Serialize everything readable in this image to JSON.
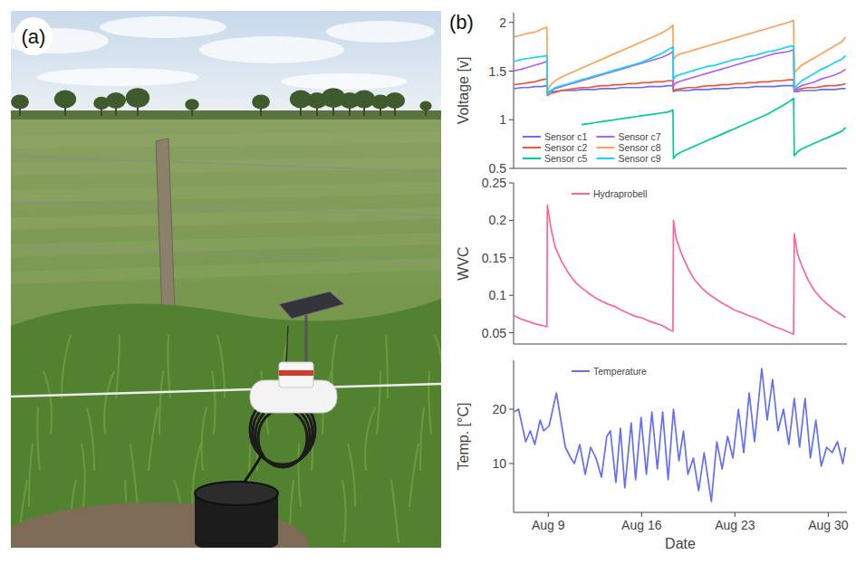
{
  "panel_labels": [
    "(a)",
    "(b)"
  ],
  "chart_data": [
    {
      "type": "line",
      "ylabel": "Voltage [v]",
      "xlim": [
        6.4,
        31.4
      ],
      "ylim": [
        0.5,
        2.1
      ],
      "yticks": [
        0.5,
        1,
        1.5,
        2
      ],
      "grid": false,
      "legend": "lower left",
      "tick_labels": "y",
      "x": [
        6.43,
        7.0,
        7.5,
        8.0,
        8.5,
        8.9,
        8.93,
        9.2,
        9.5,
        10.0,
        10.5,
        11.0,
        11.5,
        12.0,
        12.5,
        13.0,
        13.5,
        14.0,
        14.5,
        15.0,
        15.5,
        16.0,
        16.5,
        17.0,
        17.5,
        18.0,
        18.35,
        18.39,
        18.6,
        19.0,
        19.5,
        20.0,
        20.5,
        21.0,
        21.5,
        22.0,
        22.5,
        23.0,
        23.5,
        24.0,
        24.5,
        25.0,
        25.5,
        26.0,
        26.5,
        27.0,
        27.4,
        27.45,
        27.7,
        28.0,
        28.5,
        29.0,
        29.5,
        30.0,
        30.5,
        31.0,
        31.3
      ],
      "series": [
        {
          "name": "Sensor c1",
          "color": "#636efa",
          "values": [
            1.32,
            1.33,
            1.33,
            1.34,
            1.34,
            1.35,
            1.28,
            1.29,
            1.29,
            1.3,
            1.3,
            1.3,
            1.31,
            1.31,
            1.31,
            1.32,
            1.32,
            1.32,
            1.33,
            1.33,
            1.33,
            1.33,
            1.34,
            1.34,
            1.34,
            1.35,
            1.35,
            1.29,
            1.3,
            1.3,
            1.3,
            1.31,
            1.31,
            1.31,
            1.32,
            1.32,
            1.32,
            1.33,
            1.33,
            1.33,
            1.34,
            1.34,
            1.34,
            1.34,
            1.35,
            1.35,
            1.35,
            1.29,
            1.29,
            1.3,
            1.3,
            1.3,
            1.31,
            1.31,
            1.31,
            1.32,
            1.32
          ]
        },
        {
          "name": "Sensor c2",
          "color": "#ef553b",
          "values": [
            1.36,
            1.37,
            1.38,
            1.39,
            1.41,
            1.42,
            1.25,
            1.27,
            1.28,
            1.3,
            1.31,
            1.32,
            1.33,
            1.33,
            1.34,
            1.35,
            1.35,
            1.36,
            1.36,
            1.37,
            1.37,
            1.38,
            1.38,
            1.39,
            1.39,
            1.4,
            1.4,
            1.3,
            1.31,
            1.32,
            1.33,
            1.33,
            1.34,
            1.35,
            1.35,
            1.36,
            1.36,
            1.37,
            1.37,
            1.38,
            1.38,
            1.39,
            1.39,
            1.4,
            1.4,
            1.41,
            1.41,
            1.3,
            1.31,
            1.32,
            1.33,
            1.33,
            1.34,
            1.35,
            1.35,
            1.36,
            1.37
          ]
        },
        {
          "name": "Sensor c5",
          "color": "#00cc96",
          "values": [
            null,
            null,
            null,
            null,
            null,
            null,
            null,
            null,
            null,
            null,
            null,
            null,
            0.95,
            0.96,
            0.97,
            0.98,
            0.99,
            1.0,
            1.01,
            1.02,
            1.03,
            1.04,
            1.05,
            1.06,
            1.07,
            1.08,
            1.1,
            0.6,
            0.64,
            0.67,
            0.7,
            0.73,
            0.76,
            0.79,
            0.82,
            0.85,
            0.88,
            0.91,
            0.94,
            0.97,
            1.0,
            1.03,
            1.06,
            1.1,
            1.14,
            1.18,
            1.22,
            0.63,
            0.67,
            0.7,
            0.73,
            0.76,
            0.79,
            0.82,
            0.85,
            0.88,
            0.92
          ]
        },
        {
          "name": "Sensor c7",
          "color": "#ab63fa",
          "values": [
            1.5,
            1.52,
            1.54,
            1.56,
            1.58,
            1.6,
            1.28,
            1.3,
            1.32,
            1.34,
            1.36,
            1.38,
            1.4,
            1.42,
            1.44,
            1.46,
            1.48,
            1.5,
            1.52,
            1.54,
            1.56,
            1.58,
            1.6,
            1.62,
            1.64,
            1.67,
            1.7,
            1.35,
            1.38,
            1.4,
            1.42,
            1.44,
            1.46,
            1.48,
            1.5,
            1.52,
            1.54,
            1.56,
            1.58,
            1.6,
            1.62,
            1.64,
            1.66,
            1.68,
            1.69,
            1.7,
            1.72,
            1.3,
            1.33,
            1.35,
            1.37,
            1.39,
            1.42,
            1.44,
            1.46,
            1.49,
            1.52
          ]
        },
        {
          "name": "Sensor c8",
          "color": "#ffa15a",
          "values": [
            1.85,
            1.87,
            1.89,
            1.9,
            1.93,
            1.95,
            1.3,
            1.36,
            1.4,
            1.44,
            1.47,
            1.5,
            1.53,
            1.56,
            1.59,
            1.62,
            1.65,
            1.68,
            1.71,
            1.74,
            1.77,
            1.8,
            1.83,
            1.86,
            1.89,
            1.93,
            1.97,
            1.62,
            1.66,
            1.68,
            1.7,
            1.72,
            1.74,
            1.76,
            1.78,
            1.8,
            1.82,
            1.84,
            1.86,
            1.88,
            1.9,
            1.92,
            1.94,
            1.96,
            1.98,
            2.0,
            2.02,
            1.48,
            1.52,
            1.56,
            1.6,
            1.64,
            1.68,
            1.72,
            1.76,
            1.8,
            1.85
          ]
        },
        {
          "name": "Sensor c9",
          "color": "#19d3f3",
          "values": [
            1.6,
            1.62,
            1.63,
            1.64,
            1.65,
            1.66,
            1.26,
            1.3,
            1.33,
            1.35,
            1.37,
            1.39,
            1.41,
            1.43,
            1.45,
            1.47,
            1.49,
            1.51,
            1.53,
            1.55,
            1.57,
            1.59,
            1.62,
            1.65,
            1.68,
            1.72,
            1.75,
            1.42,
            1.45,
            1.47,
            1.49,
            1.51,
            1.53,
            1.55,
            1.56,
            1.58,
            1.6,
            1.62,
            1.63,
            1.65,
            1.66,
            1.68,
            1.7,
            1.71,
            1.73,
            1.75,
            1.76,
            1.32,
            1.36,
            1.4,
            1.44,
            1.48,
            1.52,
            1.55,
            1.59,
            1.62,
            1.66
          ]
        }
      ]
    },
    {
      "type": "line",
      "ylabel": "WVC",
      "xlim": [
        6.4,
        31.4
      ],
      "ylim": [
        0.035,
        0.25
      ],
      "yticks": [
        0.05,
        0.1,
        0.15,
        0.2,
        0.25
      ],
      "grid": false,
      "legend": "upper left",
      "tick_labels": "y",
      "x": [
        6.43,
        7.0,
        7.5,
        8.0,
        8.5,
        8.9,
        8.93,
        9.2,
        9.5,
        10.0,
        10.5,
        11.0,
        11.5,
        12.0,
        12.5,
        13.0,
        13.5,
        14.0,
        14.5,
        15.0,
        15.5,
        16.0,
        16.5,
        17.0,
        17.5,
        18.0,
        18.35,
        18.39,
        18.6,
        19.0,
        19.5,
        20.0,
        20.5,
        21.0,
        21.5,
        22.0,
        22.5,
        23.0,
        23.5,
        24.0,
        24.5,
        25.0,
        25.5,
        26.0,
        26.5,
        27.0,
        27.4,
        27.45,
        27.7,
        28.0,
        28.5,
        29.0,
        29.5,
        30.0,
        30.5,
        31.0,
        31.3
      ],
      "series": [
        {
          "name": "Hydraprobell",
          "color": "#ff6692",
          "values": [
            0.073,
            0.068,
            0.065,
            0.062,
            0.06,
            0.058,
            0.22,
            0.19,
            0.165,
            0.145,
            0.13,
            0.118,
            0.11,
            0.103,
            0.097,
            0.092,
            0.088,
            0.085,
            0.08,
            0.076,
            0.072,
            0.07,
            0.066,
            0.063,
            0.06,
            0.055,
            0.052,
            0.2,
            0.175,
            0.155,
            0.135,
            0.12,
            0.11,
            0.102,
            0.096,
            0.09,
            0.085,
            0.08,
            0.077,
            0.073,
            0.07,
            0.066,
            0.062,
            0.058,
            0.055,
            0.051,
            0.048,
            0.182,
            0.155,
            0.14,
            0.12,
            0.105,
            0.095,
            0.087,
            0.08,
            0.074,
            0.07
          ]
        }
      ]
    },
    {
      "type": "line",
      "ylabel": "Temp. [°C]",
      "xlabel": "Date",
      "xlim": [
        6.4,
        31.4
      ],
      "ylim": [
        1,
        29
      ],
      "yticks": [
        10,
        20
      ],
      "xticks": [
        {
          "value": 9,
          "label": "Aug 9"
        },
        {
          "value": 16,
          "label": "Aug 16"
        },
        {
          "value": 23,
          "label": "Aug 23"
        },
        {
          "value": 30,
          "label": "Aug 30"
        }
      ],
      "grid": false,
      "legend": "upper left",
      "x": [
        6.43,
        6.77,
        7.31,
        7.65,
        7.99,
        8.39,
        8.66,
        9.07,
        9.61,
        10.01,
        10.28,
        10.69,
        10.96,
        11.36,
        11.77,
        12.18,
        12.58,
        12.99,
        13.39,
        13.66,
        14.07,
        14.41,
        14.74,
        15.22,
        15.55,
        15.96,
        16.36,
        16.77,
        17.18,
        17.58,
        17.99,
        18.39,
        18.8,
        19.14,
        19.47,
        19.88,
        20.28,
        20.69,
        21.23,
        21.64,
        22.04,
        22.45,
        22.85,
        23.26,
        23.66,
        24.07,
        24.47,
        25.01,
        25.42,
        25.82,
        26.23,
        26.64,
        27.04,
        27.45,
        27.85,
        28.26,
        28.66,
        29.07,
        29.47,
        29.88,
        30.28,
        30.69,
        31.09,
        31.3
      ],
      "series": [
        {
          "name": "Temperature",
          "color": "#636efa",
          "values": [
            19.5,
            20,
            14,
            16,
            13.5,
            18,
            16,
            17,
            23,
            17,
            13,
            11,
            10,
            13.5,
            8,
            13,
            11,
            7.5,
            15,
            16,
            6.5,
            16.5,
            5.5,
            17.5,
            7,
            18.5,
            8,
            19.5,
            9,
            19.5,
            7,
            20,
            10.5,
            16,
            8,
            11,
            5,
            12,
            3,
            14,
            9,
            15,
            11,
            20,
            12,
            23,
            14,
            27.5,
            18,
            25.5,
            16,
            20,
            13.5,
            22,
            13,
            22,
            11,
            18,
            9.5,
            13,
            12,
            14,
            10,
            13
          ]
        }
      ]
    }
  ]
}
